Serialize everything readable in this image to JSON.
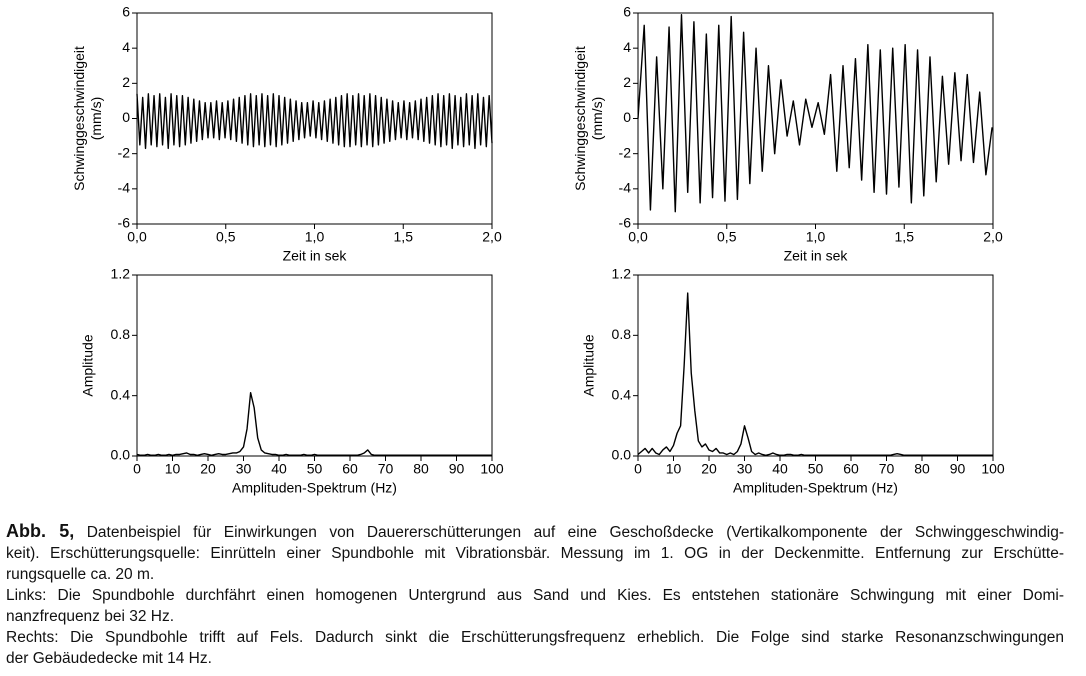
{
  "chart_data": [
    {
      "type": "line",
      "color": "#000000",
      "ylabel": [
        "Schwinggeschwindigeit",
        "(mm/s)"
      ],
      "xlabel": "Zeit in sek",
      "xlim": [
        0,
        2
      ],
      "ylim": [
        -6,
        6
      ],
      "xticks": [
        {
          "value": 0,
          "label": "0,0"
        },
        {
          "value": 0.5,
          "label": "0,5"
        },
        {
          "value": 1,
          "label": "1,0"
        },
        {
          "value": 1.5,
          "label": "1,5"
        },
        {
          "value": 2,
          "label": "2,0"
        }
      ],
      "yticks": [
        -6,
        -4,
        -2,
        0,
        2,
        4,
        6
      ],
      "x": [
        0,
        0.016,
        0.032,
        0.048,
        0.064,
        0.08,
        0.096,
        0.112,
        0.128,
        0.144,
        0.16,
        0.176,
        0.192,
        0.208,
        0.224,
        0.24,
        0.256,
        0.272,
        0.288,
        0.304,
        0.32,
        0.336,
        0.352,
        0.368,
        0.384,
        0.4,
        0.416,
        0.432,
        0.448,
        0.464,
        0.48,
        0.496,
        0.512,
        0.528,
        0.544,
        0.56,
        0.576,
        0.592,
        0.608,
        0.624,
        0.64,
        0.656,
        0.672,
        0.688,
        0.704,
        0.72,
        0.736,
        0.752,
        0.768,
        0.784,
        0.8,
        0.816,
        0.832,
        0.848,
        0.864,
        0.88,
        0.896,
        0.912,
        0.928,
        0.944,
        0.96,
        0.976,
        0.992,
        1.008,
        1.024,
        1.04,
        1.056,
        1.072,
        1.088,
        1.104,
        1.12,
        1.136,
        1.152,
        1.168,
        1.184,
        1.2,
        1.216,
        1.232,
        1.248,
        1.264,
        1.28,
        1.296,
        1.312,
        1.328,
        1.344,
        1.36,
        1.376,
        1.392,
        1.408,
        1.424,
        1.44,
        1.456,
        1.472,
        1.488,
        1.504,
        1.52,
        1.536,
        1.552,
        1.568,
        1.584,
        1.6,
        1.616,
        1.632,
        1.648,
        1.664,
        1.68,
        1.696,
        1.712,
        1.728,
        1.744,
        1.76,
        1.776,
        1.792,
        1.808,
        1.824,
        1.84,
        1.856,
        1.872,
        1.888,
        1.904,
        1.92,
        1.936,
        1.952,
        1.968,
        1.984,
        2.0
      ],
      "values": [
        1.4,
        -1.5,
        1.2,
        -1.7,
        1.4,
        -1.5,
        1.3,
        -1.6,
        1.4,
        -1.5,
        1.2,
        -1.7,
        1.4,
        -1.5,
        1.3,
        -1.6,
        1.3,
        -1.5,
        1.2,
        -1.4,
        1.1,
        -1.3,
        1.0,
        -1.2,
        0.9,
        -1.1,
        0.9,
        -1.1,
        1.0,
        -1.2,
        0.9,
        -1.1,
        1.0,
        -1.2,
        1.1,
        -1.3,
        1.2,
        -1.4,
        1.3,
        -1.5,
        1.4,
        -1.6,
        1.3,
        -1.5,
        1.4,
        -1.6,
        1.3,
        -1.5,
        1.4,
        -1.6,
        1.3,
        -1.5,
        1.2,
        -1.4,
        1.1,
        -1.3,
        1.0,
        -1.2,
        0.9,
        -1.1,
        0.9,
        -1.0,
        1.0,
        -1.1,
        0.9,
        -1.2,
        1.0,
        -1.3,
        1.1,
        -1.4,
        1.2,
        -1.5,
        1.3,
        -1.6,
        1.4,
        -1.6,
        1.3,
        -1.5,
        1.4,
        -1.6,
        1.3,
        -1.5,
        1.4,
        -1.6,
        1.3,
        -1.5,
        1.2,
        -1.4,
        1.1,
        -1.3,
        1.0,
        -1.2,
        0.9,
        -1.1,
        1.0,
        -1.2,
        0.9,
        -1.1,
        1.0,
        -1.2,
        1.1,
        -1.3,
        1.2,
        -1.4,
        1.3,
        -1.5,
        1.4,
        -1.6,
        1.3,
        -1.5,
        1.4,
        -1.7,
        1.3,
        -1.5,
        1.2,
        -1.6,
        1.4,
        -1.5,
        1.3,
        -1.7,
        1.4,
        -1.5,
        1.2,
        -1.6,
        1.3,
        -1.4
      ]
    },
    {
      "type": "line",
      "color": "#000000",
      "ylabel": [
        "Schwinggeschwindigeit",
        "(mm/s)"
      ],
      "xlabel": "Zeit in sek",
      "xlim": [
        0,
        2
      ],
      "ylim": [
        -6,
        6
      ],
      "xticks": [
        {
          "value": 0,
          "label": "0,0"
        },
        {
          "value": 0.5,
          "label": "0,5"
        },
        {
          "value": 1,
          "label": "1,0"
        },
        {
          "value": 1.5,
          "label": "1,5"
        },
        {
          "value": 2,
          "label": "2,0"
        }
      ],
      "yticks": [
        -6,
        -4,
        -2,
        0,
        2,
        4,
        6
      ],
      "x": [
        0,
        0.035,
        0.07,
        0.105,
        0.14,
        0.175,
        0.21,
        0.245,
        0.28,
        0.315,
        0.35,
        0.385,
        0.42,
        0.455,
        0.49,
        0.525,
        0.56,
        0.595,
        0.63,
        0.665,
        0.7,
        0.735,
        0.77,
        0.805,
        0.84,
        0.875,
        0.91,
        0.945,
        0.98,
        1.015,
        1.05,
        1.085,
        1.12,
        1.155,
        1.19,
        1.225,
        1.26,
        1.295,
        1.33,
        1.365,
        1.4,
        1.435,
        1.47,
        1.505,
        1.54,
        1.575,
        1.61,
        1.645,
        1.68,
        1.715,
        1.75,
        1.785,
        1.82,
        1.855,
        1.89,
        1.925,
        1.96,
        1.995
      ],
      "values": [
        0,
        5.3,
        -5.2,
        3.5,
        -4.0,
        5.2,
        -5.3,
        5.9,
        -4.2,
        5.5,
        -4.8,
        4.8,
        -4.5,
        5.3,
        -4.7,
        5.8,
        -4.6,
        4.9,
        -3.7,
        4.0,
        -3.0,
        3.0,
        -2.0,
        2.2,
        -1.0,
        1.0,
        -1.5,
        1.1,
        -0.5,
        0.9,
        -0.9,
        2.5,
        -3.0,
        3.0,
        -2.8,
        3.4,
        -3.5,
        4.2,
        -4.2,
        3.9,
        -4.3,
        4.0,
        -3.9,
        4.2,
        -4.8,
        3.9,
        -4.4,
        3.5,
        -3.6,
        2.4,
        -2.6,
        2.6,
        -2.4,
        2.5,
        -2.5,
        1.5,
        -3.2,
        -0.5
      ]
    },
    {
      "type": "line",
      "color": "#000000",
      "ylabel": [
        "Amplitude"
      ],
      "xlabel": "Amplituden-Spektrum (Hz)",
      "xlim": [
        0,
        100
      ],
      "ylim": [
        0,
        1.2
      ],
      "xticks": [
        0,
        10,
        20,
        30,
        40,
        50,
        60,
        70,
        80,
        90,
        100
      ],
      "yticks": [
        {
          "value": 0,
          "label": "0.0"
        },
        {
          "value": 0.4,
          "label": "0.4"
        },
        {
          "value": 0.8,
          "label": "0.8"
        },
        {
          "value": 1.2,
          "label": "1.2"
        }
      ],
      "x": [
        0,
        1,
        2,
        3,
        4,
        5,
        6,
        7,
        8,
        9,
        10,
        11,
        12,
        13,
        14,
        15,
        16,
        17,
        18,
        19,
        20,
        21,
        22,
        23,
        24,
        25,
        26,
        27,
        28,
        29,
        30,
        31,
        32,
        33,
        34,
        35,
        36,
        37,
        38,
        39,
        40,
        41,
        42,
        43,
        44,
        45,
        46,
        47,
        48,
        49,
        50,
        51,
        52,
        53,
        54,
        55,
        56,
        57,
        58,
        59,
        60,
        61,
        62,
        63,
        64,
        65,
        66,
        67,
        68,
        69,
        70,
        71,
        72,
        73,
        74,
        75,
        76,
        77,
        78,
        79,
        80,
        81,
        82,
        83,
        84,
        85,
        86,
        87,
        88,
        89,
        90,
        91,
        92,
        93,
        94,
        95,
        96,
        97,
        98,
        99,
        100
      ],
      "values": [
        0.01,
        0.005,
        0.005,
        0.01,
        0.005,
        0.005,
        0.01,
        0.005,
        0.005,
        0.01,
        0.005,
        0.01,
        0.01,
        0.015,
        0.02,
        0.01,
        0.01,
        0.005,
        0.01,
        0.015,
        0.01,
        0.005,
        0.01,
        0.015,
        0.01,
        0.01,
        0.015,
        0.02,
        0.02,
        0.03,
        0.06,
        0.18,
        0.42,
        0.32,
        0.12,
        0.04,
        0.02,
        0.015,
        0.01,
        0.01,
        0.005,
        0.005,
        0.01,
        0.005,
        0.005,
        0.005,
        0.005,
        0.01,
        0.005,
        0.005,
        0.01,
        0.005,
        0.005,
        0.005,
        0.005,
        0.005,
        0.005,
        0.005,
        0.005,
        0.005,
        0.005,
        0.005,
        0.005,
        0.01,
        0.02,
        0.04,
        0.01,
        0.005,
        0.005,
        0.005,
        0.005,
        0.005,
        0.005,
        0.005,
        0.005,
        0.005,
        0.005,
        0.005,
        0.005,
        0.005,
        0.005,
        0.005,
        0.005,
        0.005,
        0.005,
        0.005,
        0.005,
        0.005,
        0.005,
        0.005,
        0.005,
        0.005,
        0.005,
        0.005,
        0.005,
        0.005,
        0.005,
        0.005,
        0.005,
        0.005,
        0.005
      ]
    },
    {
      "type": "line",
      "color": "#000000",
      "ylabel": [
        "Amplitude"
      ],
      "xlabel": "Amplituden-Spektrum (Hz)",
      "xlim": [
        0,
        100
      ],
      "ylim": [
        0,
        1.2
      ],
      "xticks": [
        0,
        10,
        20,
        30,
        40,
        50,
        60,
        70,
        80,
        90,
        100
      ],
      "yticks": [
        {
          "value": 0,
          "label": "0.0"
        },
        {
          "value": 0.4,
          "label": "0.4"
        },
        {
          "value": 0.8,
          "label": "0.8"
        },
        {
          "value": 1.2,
          "label": "1.2"
        }
      ],
      "x": [
        0,
        1,
        2,
        3,
        4,
        5,
        6,
        7,
        8,
        9,
        10,
        11,
        12,
        13,
        14,
        15,
        16,
        17,
        18,
        19,
        20,
        21,
        22,
        23,
        24,
        25,
        26,
        27,
        28,
        29,
        30,
        31,
        32,
        33,
        34,
        35,
        36,
        37,
        38,
        39,
        40,
        41,
        42,
        43,
        44,
        45,
        46,
        47,
        48,
        49,
        50,
        51,
        52,
        53,
        54,
        55,
        56,
        57,
        58,
        59,
        60,
        61,
        62,
        63,
        64,
        65,
        66,
        67,
        68,
        69,
        70,
        71,
        72,
        73,
        74,
        75,
        76,
        77,
        78,
        79,
        80,
        81,
        82,
        83,
        84,
        85,
        86,
        87,
        88,
        89,
        90,
        91,
        92,
        93,
        94,
        95,
        96,
        97,
        98,
        99,
        100
      ],
      "values": [
        0.01,
        0.03,
        0.05,
        0.02,
        0.05,
        0.02,
        0.01,
        0.04,
        0.06,
        0.03,
        0.07,
        0.15,
        0.2,
        0.6,
        1.08,
        0.55,
        0.3,
        0.1,
        0.06,
        0.08,
        0.04,
        0.03,
        0.05,
        0.02,
        0.02,
        0.01,
        0.02,
        0.01,
        0.03,
        0.08,
        0.2,
        0.12,
        0.03,
        0.01,
        0.02,
        0.01,
        0.005,
        0.01,
        0.02,
        0.01,
        0.005,
        0.005,
        0.01,
        0.01,
        0.005,
        0.005,
        0.01,
        0.005,
        0.005,
        0.005,
        0.005,
        0.005,
        0.005,
        0.005,
        0.005,
        0.005,
        0.005,
        0.005,
        0.005,
        0.005,
        0.005,
        0.005,
        0.005,
        0.005,
        0.005,
        0.005,
        0.005,
        0.005,
        0.005,
        0.005,
        0.005,
        0.005,
        0.01,
        0.015,
        0.01,
        0.005,
        0.005,
        0.005,
        0.005,
        0.005,
        0.005,
        0.005,
        0.005,
        0.005,
        0.005,
        0.005,
        0.005,
        0.005,
        0.005,
        0.005,
        0.005,
        0.005,
        0.005,
        0.005,
        0.005,
        0.005,
        0.005,
        0.005,
        0.005,
        0.005,
        0.005
      ]
    }
  ],
  "caption": {
    "label": "Abb. 5,",
    "lines": [
      "Datenbeispiel für Einwirkungen von Dauererschütterungen auf eine Geschoßdecke (Vertikalkomponente der Schwinggeschwindig-",
      "keit). Erschütterungsquelle: Einrütteln einer Spundbohle mit Vibrationsbär. Messung im 1. OG in der Deckenmitte. Entfernung zur Erschütte-",
      "rungsquelle ca. 20 m.",
      "Links: Die Spundbohle durchfährt einen homogenen Untergrund aus Sand und Kies. Es entstehen stationäre Schwingung mit einer Domi-",
      "nanzfrequenz bei 32 Hz.",
      "Rechts: Die Spundbohle trifft auf Fels. Dadurch sinkt die Erschütterungsfrequenz erheblich. Die Folge sind starke Resonanzschwingungen",
      "der Gebäudedecke mit 14 Hz."
    ]
  }
}
